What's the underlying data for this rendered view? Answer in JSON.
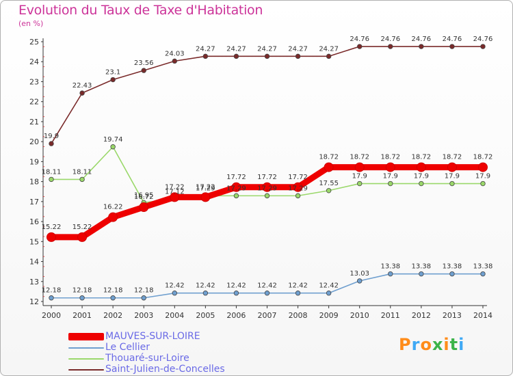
{
  "title": "Evolution du Taux de Taxe d'Habitation",
  "unit_label": "(en %)",
  "logo": {
    "text": "Proxiti",
    "colors": [
      "#ff8c1a",
      "#3fa9f5",
      "#ff8c1a",
      "#3cb34a",
      "#ff8c1a",
      "#3cb34a",
      "#3fa9f5"
    ]
  },
  "chart_data": {
    "type": "line",
    "x": [
      2000,
      2001,
      2002,
      2003,
      2004,
      2005,
      2006,
      2007,
      2008,
      2009,
      2010,
      2011,
      2012,
      2013,
      2014
    ],
    "ylim": [
      12,
      25
    ],
    "yticks": [
      12,
      13,
      14,
      15,
      16,
      17,
      18,
      19,
      20,
      21,
      22,
      23,
      24,
      25
    ],
    "grid": false,
    "series": [
      {
        "name": "MAUVES-SUR-LOIRE",
        "color": "#ee0000",
        "style": "thick",
        "values": [
          15.22,
          15.22,
          16.22,
          16.72,
          17.22,
          17.22,
          17.72,
          17.72,
          17.72,
          18.72,
          18.72,
          18.72,
          18.72,
          18.72,
          18.72
        ],
        "labels": [
          "15.22",
          "15.22",
          "16.22",
          "16.72",
          "17.22",
          "17.22",
          "17.72",
          "17.72",
          "17.72",
          "18.72",
          "18.72",
          "18.72",
          "18.72",
          "18.72",
          "18.72"
        ]
      },
      {
        "name": "Le Cellier",
        "color": "#6f9fcf",
        "style": "thin",
        "values": [
          12.18,
          12.18,
          12.18,
          12.18,
          12.42,
          12.42,
          12.42,
          12.42,
          12.42,
          12.42,
          13.03,
          13.38,
          13.38,
          13.38,
          13.38
        ],
        "labels": [
          "12.18",
          "12.18",
          "12.18",
          "12.18",
          "12.42",
          "12.42",
          "12.42",
          "12.42",
          "12.42",
          "12.42",
          "13.03",
          "13.38",
          "13.38",
          "13.38",
          "13.38"
        ]
      },
      {
        "name": "Thouaré-sur-Loire",
        "color": "#9ad86a",
        "style": "thin",
        "values": [
          18.11,
          18.11,
          19.74,
          16.95,
          17.12,
          17.29,
          17.29,
          17.29,
          17.29,
          17.55,
          17.9,
          17.9,
          17.9,
          17.9,
          17.9
        ],
        "labels": [
          "18.11",
          "18.11",
          "19.74",
          "16.95",
          "17.12",
          "17.29",
          "17.29",
          "17.29",
          "17.29",
          "17.55",
          "17.9",
          "17.9",
          "17.9",
          "17.9",
          "17.9"
        ]
      },
      {
        "name": "Saint-Julien-de-Concelles",
        "color": "#7a2a2a",
        "style": "thin",
        "values": [
          19.9,
          22.43,
          23.1,
          23.56,
          24.03,
          24.27,
          24.27,
          24.27,
          24.27,
          24.27,
          24.76,
          24.76,
          24.76,
          24.76,
          24.76
        ],
        "labels": [
          "19.9",
          "22.43",
          "23.1",
          "23.56",
          "24.03",
          "24.27",
          "24.27",
          "24.27",
          "24.27",
          "24.27",
          "24.76",
          "24.76",
          "24.76",
          "24.76",
          "24.76"
        ]
      }
    ],
    "legend_position": "bottom-left"
  }
}
